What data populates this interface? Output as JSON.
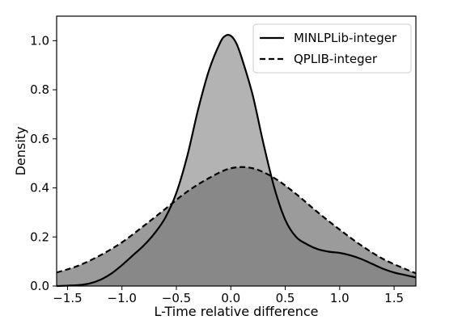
{
  "chart_data": {
    "type": "area",
    "xlabel": "L-Time relative difference",
    "ylabel": "Density",
    "xlim": [
      -1.6,
      1.7
    ],
    "ylim": [
      0.0,
      1.1
    ],
    "xticks": [
      -1.5,
      -1.0,
      -0.5,
      0.0,
      0.5,
      1.0,
      1.5
    ],
    "xtick_labels": [
      "−1.5",
      "−1.0",
      "−0.5",
      "0.0",
      "0.5",
      "1.0",
      "1.5"
    ],
    "yticks": [
      0.0,
      0.2,
      0.4,
      0.6,
      0.8,
      1.0
    ],
    "ytick_labels": [
      "0.0",
      "0.2",
      "0.4",
      "0.6",
      "0.8",
      "1.0"
    ],
    "grid": false,
    "legend_position": "top-right",
    "series": [
      {
        "name": "MINLPLib-integer",
        "line_style": "solid",
        "line_color": "#000000",
        "fill_color": "#b3b3b3",
        "x": [
          -1.6,
          -1.4,
          -1.3,
          -1.2,
          -1.1,
          -1.0,
          -0.9,
          -0.8,
          -0.7,
          -0.6,
          -0.5,
          -0.4,
          -0.3,
          -0.2,
          -0.1,
          -0.05,
          0.0,
          0.05,
          0.1,
          0.2,
          0.3,
          0.4,
          0.5,
          0.6,
          0.7,
          0.8,
          0.9,
          1.0,
          1.1,
          1.2,
          1.3,
          1.4,
          1.5,
          1.6,
          1.7
        ],
        "y": [
          0.0,
          0.004,
          0.01,
          0.025,
          0.05,
          0.085,
          0.125,
          0.165,
          0.215,
          0.28,
          0.38,
          0.53,
          0.72,
          0.88,
          0.99,
          1.02,
          1.02,
          0.99,
          0.93,
          0.78,
          0.58,
          0.4,
          0.27,
          0.2,
          0.17,
          0.15,
          0.14,
          0.135,
          0.125,
          0.11,
          0.09,
          0.07,
          0.055,
          0.045,
          0.035
        ]
      },
      {
        "name": "QPLIB-integer",
        "line_style": "dashed",
        "line_color": "#000000",
        "fill_color": "#7a7a7a",
        "x": [
          -1.6,
          -1.4,
          -1.2,
          -1.0,
          -0.8,
          -0.6,
          -0.4,
          -0.2,
          0.0,
          0.2,
          0.4,
          0.6,
          0.8,
          1.0,
          1.2,
          1.4,
          1.6,
          1.7
        ],
        "y": [
          0.055,
          0.083,
          0.125,
          0.178,
          0.245,
          0.315,
          0.385,
          0.44,
          0.48,
          0.48,
          0.44,
          0.375,
          0.3,
          0.23,
          0.165,
          0.11,
          0.07,
          0.052
        ]
      }
    ]
  }
}
